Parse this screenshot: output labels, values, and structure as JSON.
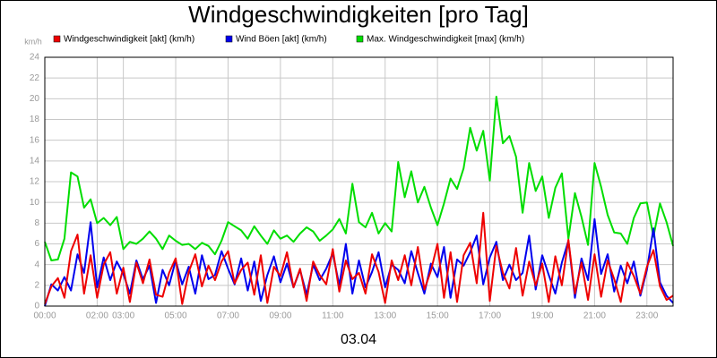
{
  "chart_data": {
    "type": "line",
    "title": "Windgeschwindigkeiten [pro Tag]",
    "ylabel": "km/h",
    "xlabel": "03.04",
    "xlim": [
      0,
      24
    ],
    "xticks": [
      {
        "value": 0,
        "label": "00:00"
      },
      {
        "value": 2,
        "label": "02:00"
      },
      {
        "value": 3,
        "label": "03:00"
      },
      {
        "value": 5,
        "label": "05:00"
      },
      {
        "value": 7,
        "label": "07:00"
      },
      {
        "value": 9,
        "label": "09:00"
      },
      {
        "value": 11,
        "label": "11:00"
      },
      {
        "value": 13,
        "label": "13:00"
      },
      {
        "value": 15,
        "label": "15:00"
      },
      {
        "value": 17,
        "label": "17:00"
      },
      {
        "value": 19,
        "label": "19:00"
      },
      {
        "value": 21,
        "label": "21:00"
      },
      {
        "value": 23,
        "label": "23:00"
      }
    ],
    "ylim": [
      0,
      24
    ],
    "yticks": [
      0,
      2,
      4,
      6,
      8,
      10,
      12,
      14,
      16,
      18,
      20,
      22,
      24
    ],
    "grid": true,
    "x": [
      0,
      0.25,
      0.5,
      0.75,
      1,
      1.25,
      1.5,
      1.75,
      2,
      2.25,
      2.5,
      2.75,
      3,
      3.25,
      3.5,
      3.75,
      4,
      4.25,
      4.5,
      4.75,
      5,
      5.25,
      5.5,
      5.75,
      6,
      6.25,
      6.5,
      6.75,
      7,
      7.25,
      7.5,
      7.75,
      8,
      8.25,
      8.5,
      8.75,
      9,
      9.25,
      9.5,
      9.75,
      10,
      10.25,
      10.5,
      10.75,
      11,
      11.25,
      11.5,
      11.75,
      12,
      12.25,
      12.5,
      12.75,
      13,
      13.25,
      13.5,
      13.75,
      14,
      14.25,
      14.5,
      14.75,
      15,
      15.25,
      15.5,
      15.75,
      16,
      16.25,
      16.5,
      16.75,
      17,
      17.25,
      17.5,
      17.75,
      18,
      18.25,
      18.5,
      18.75,
      19,
      19.25,
      19.5,
      19.75,
      20,
      20.25,
      20.5,
      20.75,
      21,
      21.25,
      21.5,
      21.75,
      22,
      22.25,
      22.5,
      22.75,
      23,
      23.25,
      23.5,
      23.75,
      24
    ],
    "series": [
      {
        "name": "Windgeschwindigkeit [akt] (km/h)",
        "color": "#ee0000",
        "values": [
          0.2,
          1.9,
          2.7,
          0.8,
          5.3,
          6.9,
          1.2,
          4.9,
          0.8,
          4.0,
          5.2,
          1.2,
          3.7,
          0.4,
          4.2,
          2.2,
          4.5,
          1.1,
          0.9,
          3.2,
          4.6,
          0.2,
          3.3,
          5.0,
          1.9,
          3.9,
          2.5,
          4.3,
          5.3,
          2.2,
          3.5,
          4.2,
          1.1,
          4.9,
          0.3,
          3.8,
          2.9,
          5.2,
          1.8,
          3.6,
          0.5,
          4.3,
          3.0,
          2.1,
          5.5,
          1.4,
          4.4,
          2.6,
          3.2,
          1.2,
          5.0,
          3.3,
          0.3,
          4.4,
          2.5,
          4.9,
          2.0,
          5.7,
          1.6,
          3.4,
          6.0,
          0.8,
          5.2,
          0.4,
          4.9,
          6.1,
          2.2,
          9.0,
          0.5,
          5.8,
          3.2,
          1.7,
          5.6,
          1.0,
          4.3,
          2.0,
          4.1,
          0.4,
          4.8,
          2.0,
          6.4,
          1.2,
          4.2,
          0.6,
          5.0,
          0.9,
          4.4,
          2.6,
          0.4,
          4.2,
          2.9,
          1.2,
          3.8,
          5.4,
          1.9,
          0.6,
          1.0
        ]
      },
      {
        "name": "Wind Böen [akt] (km/h)",
        "color": "#0000ee",
        "values": [
          0,
          2.1,
          1.5,
          2.8,
          1.5,
          5.0,
          3.2,
          8.1,
          1.8,
          4.7,
          2.5,
          4.3,
          3.1,
          1.2,
          4.4,
          2.6,
          3.9,
          0.3,
          3.5,
          2.0,
          4.4,
          2.1,
          3.8,
          1.2,
          4.9,
          2.6,
          3.0,
          5.3,
          3.6,
          2.1,
          4.6,
          1.5,
          4.3,
          0.5,
          3.0,
          4.8,
          2.3,
          4.1,
          1.8,
          3.5,
          1.1,
          4.0,
          2.5,
          3.6,
          5.1,
          2.0,
          6.0,
          1.2,
          4.4,
          1.8,
          3.3,
          5.2,
          1.8,
          4.0,
          3.5,
          2.2,
          5.3,
          3.2,
          1.2,
          4.1,
          2.8,
          5.7,
          0.8,
          4.5,
          3.9,
          5.2,
          6.8,
          2.1,
          4.7,
          6.2,
          2.5,
          4.0,
          2.5,
          3.2,
          6.8,
          1.6,
          4.9,
          3.0,
          1.2,
          4.2,
          6.3,
          0.8,
          4.6,
          2.5,
          8.4,
          3.1,
          5.0,
          1.4,
          3.9,
          2.2,
          4.3,
          1.0,
          3.5,
          7.5,
          2.3,
          1.0,
          0.3
        ]
      },
      {
        "name": "Max. Windgeschwindigkeit [max] (km/h)",
        "color": "#00dd00",
        "values": [
          6.2,
          4.4,
          4.5,
          6.5,
          12.9,
          12.5,
          9.5,
          10.3,
          8.0,
          8.5,
          7.8,
          8.6,
          5.5,
          6.2,
          6.0,
          6.5,
          7.2,
          6.5,
          5.5,
          6.8,
          6.3,
          5.9,
          6.0,
          5.5,
          6.1,
          5.8,
          5.0,
          6.3,
          8.1,
          7.7,
          7.3,
          6.5,
          7.7,
          6.8,
          6.0,
          7.3,
          6.5,
          6.8,
          6.2,
          7.0,
          7.6,
          7.2,
          6.3,
          6.8,
          7.4,
          8.4,
          7.0,
          11.8,
          8.1,
          7.6,
          9.0,
          7.0,
          8.0,
          7.2,
          13.9,
          10.5,
          13.0,
          10.0,
          11.5,
          9.5,
          7.8,
          9.9,
          12.3,
          11.3,
          13.3,
          17.2,
          15.0,
          16.9,
          12.1,
          20.2,
          15.7,
          16.4,
          14.4,
          9.0,
          13.8,
          11.1,
          12.5,
          8.5,
          11.4,
          12.8,
          6.5,
          10.9,
          8.6,
          5.9,
          13.8,
          11.5,
          8.8,
          7.1,
          7.0,
          6.0,
          8.5,
          9.9,
          10.0,
          6.7,
          9.9,
          8.1,
          5.8
        ]
      }
    ]
  }
}
